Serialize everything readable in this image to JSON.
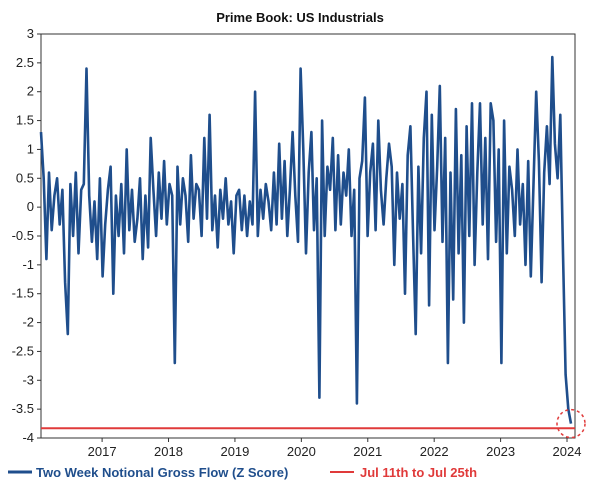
{
  "chart_data": {
    "type": "line",
    "title": "Prime Book: US Industrials",
    "xlabel": "",
    "ylabel": "",
    "ylim": [
      -4,
      3
    ],
    "yticks": [
      3,
      2.5,
      2,
      1.5,
      1,
      0.5,
      0,
      -0.5,
      -1,
      -1.5,
      -2,
      -2.5,
      -3,
      -3.5,
      -4
    ],
    "ytick_labels": [
      "3",
      "2.5",
      "2",
      "1.5",
      "1",
      "0.5",
      "0",
      "-0.5",
      "-1",
      "-1.5",
      "-2",
      "-2.5",
      "-3",
      "-3.5",
      "-4"
    ],
    "xticks": [
      "2017",
      "2018",
      "2019",
      "2020",
      "2021",
      "2022",
      "2023",
      "2024"
    ],
    "grid": false,
    "series": [
      {
        "name": "Two Week Notional Gross Flow (Z Score)",
        "color": "#1f4e8c",
        "x_start": "2016-08",
        "x_end": "2024-07-25",
        "values": [
          1.3,
          0.5,
          -0.9,
          0.6,
          -0.4,
          0.2,
          0.5,
          -0.3,
          0.3,
          -1.3,
          -2.2,
          0.4,
          -0.5,
          0.6,
          -0.8,
          0.3,
          0.4,
          2.4,
          0.2,
          -0.6,
          0.1,
          -0.9,
          0.5,
          -1.2,
          -0.3,
          0.3,
          0.7,
          -1.5,
          0.2,
          -0.5,
          0.4,
          -0.8,
          1.0,
          -0.4,
          0.3,
          -0.6,
          -0.2,
          0.5,
          -0.9,
          0.2,
          -0.7,
          1.2,
          0.3,
          -0.5,
          0.6,
          -0.2,
          0.8,
          -0.3,
          0.4,
          0.2,
          -2.7,
          0.7,
          -0.3,
          0.5,
          0.2,
          -0.6,
          0.9,
          -0.2,
          0.4,
          0.3,
          -0.5,
          1.2,
          -0.2,
          1.6,
          -0.4,
          0.2,
          -0.7,
          0.3,
          -0.2,
          0.5,
          -0.3,
          0.1,
          -0.8,
          0.2,
          0.3,
          -0.4,
          0.2,
          -0.5,
          0.1,
          -0.3,
          2.0,
          -0.5,
          0.3,
          -0.2,
          0.4,
          0.1,
          -0.4,
          0.6,
          -0.3,
          1.1,
          -0.2,
          0.8,
          -0.5,
          0.3,
          1.3,
          0.2,
          -0.6,
          2.4,
          1.0,
          -0.8,
          0.6,
          1.3,
          -0.4,
          0.5,
          -3.3,
          1.5,
          -0.5,
          0.7,
          0.3,
          1.2,
          -0.4,
          0.9,
          -0.3,
          0.6,
          0.2,
          1.0,
          -0.5,
          0.3,
          -3.4,
          0.5,
          0.8,
          1.9,
          -0.5,
          0.6,
          1.1,
          -0.4,
          1.5,
          0.3,
          -0.3,
          0.5,
          1.1,
          0.7,
          -1.0,
          0.6,
          -0.2,
          0.4,
          -1.5,
          0.9,
          1.4,
          -0.5,
          -2.2,
          0.7,
          -0.8,
          1.2,
          2.0,
          -1.7,
          1.6,
          -0.4,
          0.7,
          2.1,
          -0.6,
          1.2,
          -2.7,
          0.6,
          -1.6,
          1.7,
          -0.8,
          0.9,
          -2.0,
          1.4,
          -0.5,
          1.8,
          -1.0,
          0.6,
          1.8,
          -0.3,
          1.2,
          -0.9,
          1.8,
          1.5,
          -0.6,
          1.0,
          -2.7,
          1.5,
          -0.8,
          0.7,
          0.3,
          -0.5,
          1.0,
          -0.3,
          0.4,
          -1.0,
          0.8,
          -1.2,
          0.4,
          2.0,
          0.8,
          -1.3,
          0.6,
          1.4,
          0.4,
          2.6,
          1.1,
          0.5,
          1.6,
          -0.8,
          -2.9,
          -3.5,
          -3.75
        ]
      }
    ],
    "annotations": [
      {
        "type": "hline",
        "y": -3.83,
        "name": "Jul 11th to Jul 25th",
        "color": "#e03a3a"
      },
      {
        "type": "dashed-circle",
        "y": -3.75,
        "color": "#e03a3a"
      }
    ],
    "legend": {
      "position": "bottom",
      "items": [
        {
          "label": "Two Week Notional Gross Flow (Z Score)",
          "color": "#1f4e8c"
        },
        {
          "label": "Jul 11th to Jul 25th",
          "color": "#e03a3a"
        }
      ]
    }
  }
}
